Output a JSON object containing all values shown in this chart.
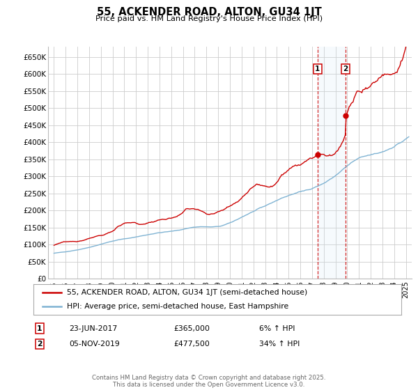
{
  "title": "55, ACKENDER ROAD, ALTON, GU34 1JT",
  "subtitle": "Price paid vs. HM Land Registry's House Price Index (HPI)",
  "ylim": [
    0,
    680000
  ],
  "xlim_start": 1994.5,
  "xlim_end": 2025.5,
  "yticks": [
    0,
    50000,
    100000,
    150000,
    200000,
    250000,
    300000,
    350000,
    400000,
    450000,
    500000,
    550000,
    600000,
    650000
  ],
  "ytick_labels": [
    "£0",
    "£50K",
    "£100K",
    "£150K",
    "£200K",
    "£250K",
    "£300K",
    "£350K",
    "£400K",
    "£450K",
    "£500K",
    "£550K",
    "£600K",
    "£650K"
  ],
  "xticks": [
    1995,
    1996,
    1997,
    1998,
    1999,
    2000,
    2001,
    2002,
    2003,
    2004,
    2005,
    2006,
    2007,
    2008,
    2009,
    2010,
    2011,
    2012,
    2013,
    2014,
    2015,
    2016,
    2017,
    2018,
    2019,
    2020,
    2021,
    2022,
    2023,
    2024,
    2025
  ],
  "red_color": "#cc0000",
  "blue_color": "#7fb3d3",
  "sale1_x": 2017.478,
  "sale1_y": 365000,
  "sale2_x": 2019.843,
  "sale2_y": 477500,
  "shade_color": "#d0e8f5",
  "legend_label_red": "55, ACKENDER ROAD, ALTON, GU34 1JT (semi-detached house)",
  "legend_label_blue": "HPI: Average price, semi-detached house, East Hampshire",
  "table_row1": [
    "1",
    "23-JUN-2017",
    "£365,000",
    "6% ↑ HPI"
  ],
  "table_row2": [
    "2",
    "05-NOV-2019",
    "£477,500",
    "34% ↑ HPI"
  ],
  "footer": "Contains HM Land Registry data © Crown copyright and database right 2025.\nThis data is licensed under the Open Government Licence v3.0.",
  "background_color": "#ffffff",
  "grid_color": "#cccccc"
}
